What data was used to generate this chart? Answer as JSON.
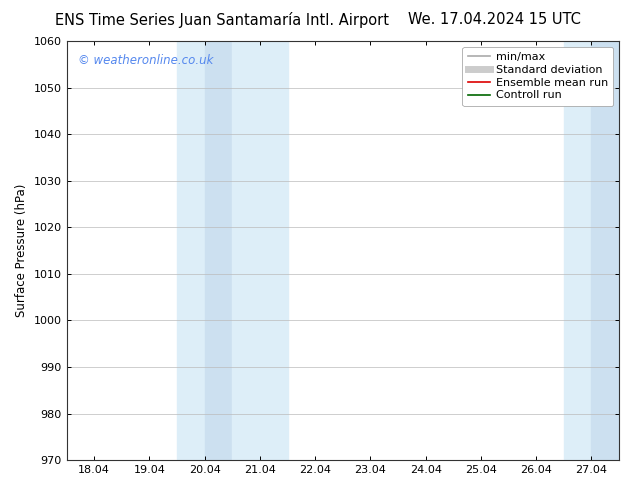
{
  "title_left": "ENS Time Series Juan Santamaría Intl. Airport",
  "title_right": "We. 17.04.2024 15 UTC",
  "ylabel": "Surface Pressure (hPa)",
  "ylim": [
    970,
    1060
  ],
  "yticks": [
    970,
    980,
    990,
    1000,
    1010,
    1020,
    1030,
    1040,
    1050,
    1060
  ],
  "xtick_labels": [
    "18.04",
    "19.04",
    "20.04",
    "21.04",
    "22.04",
    "23.04",
    "24.04",
    "25.04",
    "26.04",
    "27.04"
  ],
  "xtick_positions": [
    0,
    1,
    2,
    3,
    4,
    5,
    6,
    7,
    8,
    9
  ],
  "watermark": "© weatheronline.co.uk",
  "watermark_color": "#5588ee",
  "background_color": "#ffffff",
  "shaded_regions": [
    {
      "xstart": 1.5,
      "xend": 2.0,
      "color": "#ddeef8"
    },
    {
      "xstart": 2.0,
      "xend": 2.5,
      "color": "#cce0f0"
    },
    {
      "xstart": 2.5,
      "xend": 3.5,
      "color": "#ddeef8"
    },
    {
      "xstart": 8.5,
      "xend": 9.0,
      "color": "#ddeef8"
    },
    {
      "xstart": 9.0,
      "xend": 9.5,
      "color": "#cce0f0"
    }
  ],
  "legend_items": [
    {
      "label": "min/max",
      "color": "#aaaaaa",
      "lw": 1.2,
      "style": "solid"
    },
    {
      "label": "Standard deviation",
      "color": "#cccccc",
      "lw": 5,
      "style": "solid"
    },
    {
      "label": "Ensemble mean run",
      "color": "#dd0000",
      "lw": 1.2,
      "style": "solid"
    },
    {
      "label": "Controll run",
      "color": "#006600",
      "lw": 1.2,
      "style": "solid"
    }
  ],
  "title_fontsize": 10.5,
  "tick_fontsize": 8,
  "ylabel_fontsize": 8.5,
  "watermark_fontsize": 8.5,
  "legend_fontsize": 8,
  "grid_color": "#bbbbbb",
  "grid_lw": 0.5
}
